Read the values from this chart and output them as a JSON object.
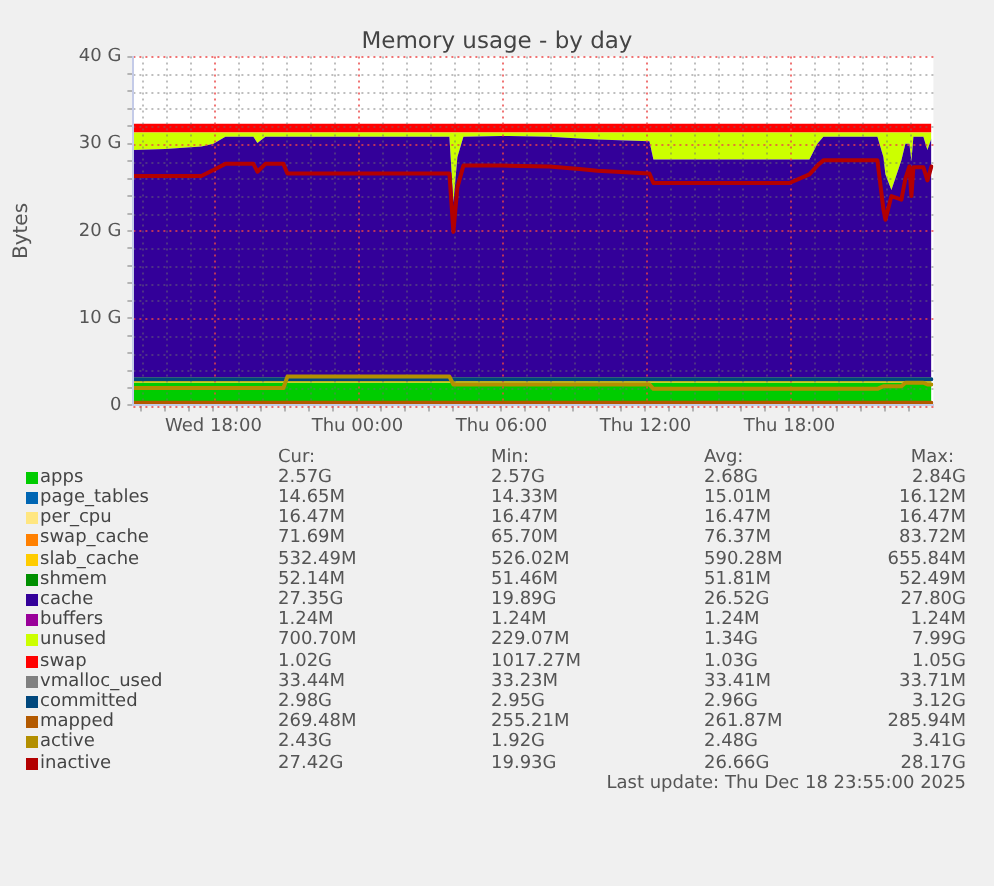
{
  "chart_data": [
    {
      "type": "area",
      "title": "Memory usage - by day",
      "ylabel": "Bytes",
      "stacked": true,
      "grid": true,
      "legend": "bottom",
      "annotations": [
        "Last update: Thu Dec 18 23:55:00 2025"
      ],
      "xlim": [
        "2025-12-17T14:40",
        "2025-12-19T00:00"
      ],
      "xticks": [
        {
          "value": "2025-12-17T15:00",
          "label": null
        },
        {
          "value": "2025-12-17T16:00",
          "label": null
        },
        {
          "value": "2025-12-17T17:00",
          "label": null
        },
        {
          "value": "2025-12-17T18:00",
          "label": "Wed 18:00"
        },
        {
          "value": "2025-12-17T19:00",
          "label": null
        },
        {
          "value": "2025-12-17T20:00",
          "label": null
        },
        {
          "value": "2025-12-17T21:00",
          "label": null
        },
        {
          "value": "2025-12-17T22:00",
          "label": null
        },
        {
          "value": "2025-12-17T23:00",
          "label": null
        },
        {
          "value": "2025-12-18T00:00",
          "label": "Thu 00:00"
        },
        {
          "value": "2025-12-18T01:00",
          "label": null
        },
        {
          "value": "2025-12-18T02:00",
          "label": null
        },
        {
          "value": "2025-12-18T03:00",
          "label": null
        },
        {
          "value": "2025-12-18T04:00",
          "label": null
        },
        {
          "value": "2025-12-18T05:00",
          "label": null
        },
        {
          "value": "2025-12-18T06:00",
          "label": "Thu 06:00"
        },
        {
          "value": "2025-12-18T07:00",
          "label": null
        },
        {
          "value": "2025-12-18T08:00",
          "label": null
        },
        {
          "value": "2025-12-18T09:00",
          "label": null
        },
        {
          "value": "2025-12-18T10:00",
          "label": null
        },
        {
          "value": "2025-12-18T11:00",
          "label": null
        },
        {
          "value": "2025-12-18T12:00",
          "label": "Thu 12:00"
        },
        {
          "value": "2025-12-18T13:00",
          "label": null
        },
        {
          "value": "2025-12-18T14:00",
          "label": null
        },
        {
          "value": "2025-12-18T15:00",
          "label": null
        },
        {
          "value": "2025-12-18T16:00",
          "label": null
        },
        {
          "value": "2025-12-18T17:00",
          "label": null
        },
        {
          "value": "2025-12-18T18:00",
          "label": "Thu 18:00"
        },
        {
          "value": "2025-12-18T19:00",
          "label": null
        },
        {
          "value": "2025-12-18T20:00",
          "label": null
        },
        {
          "value": "2025-12-18T21:00",
          "label": null
        },
        {
          "value": "2025-12-18T22:00",
          "label": null
        },
        {
          "value": "2025-12-18T23:00",
          "label": null
        }
      ],
      "ylim": [
        0,
        40
      ],
      "yticks": [
        0,
        {
          "value": 2,
          "label": null
        },
        {
          "value": 4,
          "label": null
        },
        {
          "value": 6,
          "label": null
        },
        {
          "value": 8,
          "label": null
        },
        {
          "value": 10,
          "label": "10 G"
        },
        {
          "value": 12,
          "label": null
        },
        {
          "value": 14,
          "label": null
        },
        {
          "value": 16,
          "label": null
        },
        {
          "value": 18,
          "label": null
        },
        {
          "value": 20,
          "label": "20 G"
        },
        {
          "value": 22,
          "label": null
        },
        {
          "value": 24,
          "label": null
        },
        {
          "value": 26,
          "label": null
        },
        {
          "value": 28,
          "label": null
        },
        {
          "value": 30,
          "label": "30 G"
        },
        {
          "value": 32,
          "label": null
        },
        {
          "value": 34,
          "label": null
        },
        {
          "value": 36,
          "label": null
        },
        {
          "value": 38,
          "label": null
        },
        {
          "value": 40,
          "label": "40 G"
        }
      ],
      "x": [
        "2025-12-17T14:40",
        "2025-12-17T16:00",
        "2025-12-17T17:30",
        "2025-12-17T18:00",
        "2025-12-17T18:30",
        "2025-12-17T19:00",
        "2025-12-17T19:40",
        "2025-12-17T19:50",
        "2025-12-17T20:10",
        "2025-12-17T20:55",
        "2025-12-17T21:05",
        "2025-12-17T23:00",
        "2025-12-18T01:00",
        "2025-12-18T03:00",
        "2025-12-18T03:50",
        "2025-12-18T04:00",
        "2025-12-18T04:10",
        "2025-12-18T04:25",
        "2025-12-18T06:00",
        "2025-12-18T08:00",
        "2025-12-18T09:15",
        "2025-12-18T10:00",
        "2025-12-18T12:10",
        "2025-12-18T12:20",
        "2025-12-18T15:00",
        "2025-12-18T18:00",
        "2025-12-18T18:50",
        "2025-12-18T19:10",
        "2025-12-18T19:25",
        "2025-12-18T21:40",
        "2025-12-18T21:55",
        "2025-12-18T22:00",
        "2025-12-18T22:15",
        "2025-12-18T22:40",
        "2025-12-18T22:50",
        "2025-12-18T23:00",
        "2025-12-18T23:05",
        "2025-12-18T23:10",
        "2025-12-18T23:35",
        "2025-12-18T23:45",
        "2025-12-18T23:55"
      ],
      "series": [
        {
          "name": "apps",
          "color": "#00cc00",
          "values": [
            2.6,
            2.6,
            2.6,
            2.6,
            2.6,
            2.6,
            2.6,
            2.6,
            2.6,
            2.6,
            2.6,
            2.6,
            2.6,
            2.6,
            2.6,
            2.6,
            2.6,
            2.6,
            2.6,
            2.6,
            2.6,
            2.6,
            2.6,
            2.6,
            2.6,
            2.6,
            2.6,
            2.6,
            2.6,
            2.6,
            2.6,
            2.6,
            2.6,
            2.6,
            2.6,
            2.6,
            2.6,
            2.6,
            2.6,
            2.6,
            2.6
          ]
        },
        {
          "name": "page_tables",
          "color": "#0066b3",
          "values": [
            null,
            null,
            null,
            null,
            null,
            null,
            null,
            null,
            null,
            null,
            null,
            null,
            null,
            null,
            null,
            null,
            null,
            null,
            null,
            null,
            null,
            null,
            null,
            null,
            null,
            null,
            null,
            null,
            null,
            null,
            null,
            null,
            null,
            null,
            null,
            null,
            null,
            null,
            null,
            null,
            null
          ]
        },
        {
          "name": "per_cpu",
          "color": "#ffe680",
          "values": [
            null,
            null,
            null,
            null,
            null,
            null,
            null,
            null,
            null,
            null,
            null,
            null,
            null,
            null,
            null,
            null,
            null,
            null,
            null,
            null,
            null,
            null,
            null,
            null,
            null,
            null,
            null,
            null,
            null,
            null,
            null,
            null,
            null,
            null,
            null,
            null,
            null,
            null,
            null,
            null,
            null
          ]
        },
        {
          "name": "swap_cache",
          "color": "#ff8000",
          "values": [
            null,
            null,
            null,
            null,
            null,
            null,
            null,
            null,
            null,
            null,
            null,
            null,
            null,
            null,
            null,
            null,
            null,
            null,
            null,
            null,
            null,
            null,
            null,
            null,
            null,
            null,
            null,
            null,
            null,
            null,
            null,
            null,
            null,
            null,
            null,
            null,
            null,
            null,
            null,
            null,
            null
          ]
        },
        {
          "name": "slab_cache",
          "color": "#ffcc00",
          "values": [
            0.6,
            0.6,
            0.6,
            0.6,
            0.6,
            0.6,
            0.6,
            0.6,
            0.6,
            0.6,
            0.6,
            0.6,
            0.6,
            0.6,
            0.6,
            0.6,
            0.6,
            0.6,
            0.6,
            0.6,
            0.6,
            0.6,
            0.6,
            0.6,
            0.6,
            0.6,
            0.6,
            0.6,
            0.6,
            0.6,
            0.6,
            0.6,
            0.6,
            0.6,
            0.6,
            0.6,
            0.6,
            0.6,
            0.6,
            0.6,
            0.6
          ]
        },
        {
          "name": "shmem",
          "color": "#008f00",
          "values": [
            null,
            null,
            null,
            null,
            null,
            null,
            null,
            null,
            null,
            null,
            null,
            null,
            null,
            null,
            null,
            null,
            null,
            null,
            null,
            null,
            null,
            null,
            null,
            null,
            null,
            null,
            null,
            null,
            null,
            null,
            null,
            null,
            null,
            null,
            null,
            null,
            null,
            null,
            null,
            null,
            null
          ]
        },
        {
          "name": "cache",
          "color": "#330099",
          "values": [
            26.1,
            26.2,
            26.5,
            26.8,
            27.6,
            27.6,
            27.6,
            26.9,
            27.6,
            27.6,
            27.6,
            27.6,
            27.6,
            27.6,
            27.6,
            20.1,
            25.3,
            27.6,
            27.7,
            27.6,
            27.4,
            27.3,
            27.1,
            25.0,
            25.0,
            25.0,
            25.0,
            26.8,
            27.6,
            27.6,
            25.3,
            23.3,
            21.5,
            24.9,
            26.8,
            26.8,
            24.8,
            27.6,
            27.6,
            26.1,
            27.4
          ]
        },
        {
          "name": "buffers",
          "color": "#990099",
          "values": [
            null,
            null,
            null,
            null,
            null,
            null,
            null,
            null,
            null,
            null,
            null,
            null,
            null,
            null,
            null,
            null,
            null,
            null,
            null,
            null,
            null,
            null,
            null,
            null,
            null,
            null,
            null,
            null,
            null,
            null,
            null,
            null,
            null,
            null,
            null,
            null,
            null,
            null,
            null,
            null,
            null
          ]
        },
        {
          "name": "unused",
          "color": "#ccff00",
          "values": [
            2.0,
            1.9,
            1.6,
            1.3,
            0.5,
            0.5,
            0.5,
            1.2,
            0.5,
            0.5,
            0.5,
            0.5,
            0.5,
            0.5,
            0.5,
            8.0,
            2.8,
            0.5,
            0.4,
            0.5,
            0.7,
            0.8,
            1.0,
            3.1,
            3.1,
            3.1,
            3.1,
            1.3,
            0.5,
            0.5,
            2.8,
            4.8,
            6.6,
            3.2,
            1.3,
            1.3,
            3.3,
            0.5,
            0.5,
            2.0,
            0.7
          ]
        },
        {
          "name": "swap",
          "color": "#ff0000",
          "values": [
            1,
            1,
            1,
            1,
            1,
            1,
            1,
            1,
            1,
            1,
            1,
            1,
            1,
            1,
            1,
            1,
            1,
            1,
            1,
            1,
            1,
            1,
            1,
            1,
            1,
            1,
            1,
            1,
            1,
            1,
            1,
            1,
            1,
            1,
            1,
            1,
            1,
            1,
            1,
            1,
            1
          ]
        },
        {
          "name": "vmalloc_used",
          "type": "line",
          "color": "#808080",
          "values": [
            null,
            null,
            null,
            null,
            null,
            null,
            null,
            null,
            null,
            null,
            null,
            null,
            null,
            null,
            null,
            null,
            null,
            null,
            null,
            null,
            null,
            null,
            null,
            null,
            null,
            null,
            null,
            null,
            null,
            null,
            null,
            null,
            null,
            null,
            null,
            null,
            null,
            null,
            null,
            null,
            null
          ]
        },
        {
          "name": "committed",
          "type": "line",
          "color": "#00487d",
          "values": [
            3,
            3,
            3,
            3,
            3,
            3,
            3,
            3,
            3,
            3,
            3,
            3,
            3,
            3,
            3,
            3,
            3,
            3,
            3,
            3,
            3,
            3,
            3,
            3,
            3,
            3,
            3,
            3,
            3,
            3,
            3,
            3,
            3,
            3,
            3,
            3,
            3,
            3,
            3,
            3,
            3
          ]
        },
        {
          "name": "mapped",
          "type": "line",
          "color": "#b35a00",
          "values": [
            0.3,
            0.3,
            0.3,
            0.3,
            0.3,
            0.3,
            0.3,
            0.3,
            0.3,
            0.3,
            0.3,
            0.3,
            0.3,
            0.3,
            0.3,
            0.3,
            0.3,
            0.3,
            0.3,
            0.3,
            0.3,
            0.3,
            0.3,
            0.3,
            0.3,
            0.3,
            0.3,
            0.3,
            0.3,
            0.3,
            0.3,
            0.3,
            0.3,
            0.3,
            0.3,
            0.3,
            0.3,
            0.3,
            0.3,
            0.3,
            0.3
          ]
        },
        {
          "name": "active",
          "type": "line",
          "color": "#b38f00",
          "values": [
            2.0,
            2.0,
            2.0,
            2.0,
            2.0,
            2.0,
            2.0,
            2.0,
            2.0,
            2.0,
            3.3,
            3.3,
            3.3,
            3.3,
            3.3,
            2.4,
            2.4,
            2.4,
            2.4,
            2.4,
            2.4,
            2.4,
            2.4,
            1.9,
            1.9,
            1.9,
            1.9,
            1.9,
            1.9,
            1.9,
            2.2,
            2.2,
            2.2,
            2.2,
            2.6,
            2.6,
            2.6,
            2.6,
            2.6,
            2.4,
            2.4
          ]
        },
        {
          "name": "inactive",
          "type": "line",
          "color": "#b30000",
          "values": [
            26.3,
            26.3,
            26.3,
            27.0,
            27.7,
            27.7,
            27.7,
            26.8,
            27.7,
            27.7,
            26.6,
            26.6,
            26.6,
            26.6,
            26.6,
            19.9,
            25.0,
            27.5,
            27.5,
            27.4,
            27.1,
            26.9,
            26.6,
            25.5,
            25.5,
            25.5,
            26.5,
            27.5,
            28.1,
            28.1,
            22.5,
            21.3,
            24.0,
            23.6,
            26.0,
            27.4,
            24.0,
            27.3,
            27.3,
            25.8,
            27.4
          ]
        }
      ]
    },
    {
      "type": "other",
      "cell_labels": [
        [
          "Cur:",
          "Min:",
          "Avg:",
          "Max:"
        ],
        [
          "2.57G",
          "2.57G",
          "2.68G",
          "2.84G"
        ],
        [
          "14.65M",
          "14.33M",
          "15.01M",
          "16.12M"
        ],
        [
          "16.47M",
          "16.47M",
          "16.47M",
          "16.47M"
        ],
        [
          "71.69M",
          "65.70M",
          "76.37M",
          "83.72M"
        ],
        [
          "532.49M",
          "526.02M",
          "590.28M",
          "655.84M"
        ],
        [
          "52.14M",
          "51.46M",
          "51.81M",
          "52.49M"
        ],
        [
          "27.35G",
          "19.89G",
          "26.52G",
          "27.80G"
        ],
        [
          "1.24M",
          "1.24M",
          "1.24M",
          "1.24M"
        ],
        [
          "700.70M",
          "229.07M",
          "1.34G",
          "7.99G"
        ],
        [
          "1.02G",
          "1017.27M",
          "1.03G",
          "1.05G"
        ],
        [
          "33.44M",
          "33.23M",
          "33.41M",
          "33.71M"
        ],
        [
          "2.98G",
          "2.95G",
          "2.96G",
          "3.12G"
        ],
        [
          "269.48M",
          "255.21M",
          "261.87M",
          "285.94M"
        ],
        [
          "2.43G",
          "1.92G",
          "2.48G",
          "3.41G"
        ],
        [
          "27.42G",
          "19.93G",
          "26.66G",
          "28.17G"
        ]
      ]
    }
  ]
}
